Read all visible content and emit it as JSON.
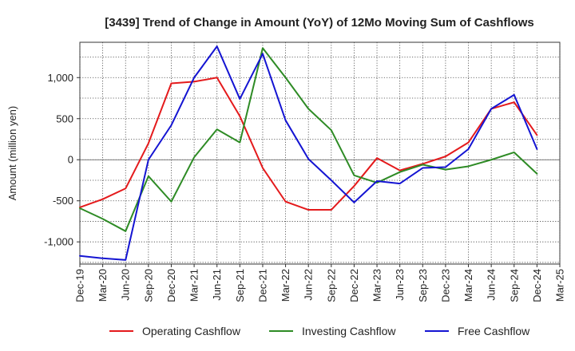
{
  "chart_data": {
    "type": "line",
    "title": "[3439]  Trend of Change in Amount (YoY) of 12Mo Moving Sum of Cashflows",
    "xlabel": "",
    "ylabel": "Amount (million yen)",
    "ylim": [
      -1270,
      1430
    ],
    "yticks": [
      -1000,
      -500,
      0,
      500,
      1000
    ],
    "ytick_labels": [
      "-1,000",
      "-500",
      "0",
      "500",
      "1,000"
    ],
    "categories": [
      "Dec-19",
      "Mar-20",
      "Jun-20",
      "Sep-20",
      "Dec-20",
      "Mar-21",
      "Jun-21",
      "Sep-21",
      "Dec-21",
      "Mar-22",
      "Jun-22",
      "Sep-22",
      "Dec-22",
      "Mar-23",
      "Jun-23",
      "Sep-23",
      "Dec-23",
      "Mar-24",
      "Jun-24",
      "Sep-24",
      "Dec-24",
      "Mar-25"
    ],
    "grid": true,
    "legend_position": "bottom",
    "series": [
      {
        "name": "Operating Cashflow",
        "color": "#e41a1c",
        "values": [
          -580,
          -480,
          -350,
          200,
          930,
          950,
          1000,
          530,
          -100,
          -510,
          -610,
          -610,
          -320,
          20,
          -130,
          -50,
          40,
          210,
          620,
          700,
          300,
          null
        ]
      },
      {
        "name": "Investing Cashflow",
        "color": "#2e8b25",
        "values": [
          -590,
          -720,
          -870,
          -200,
          -510,
          30,
          370,
          210,
          1360,
          1000,
          620,
          360,
          -190,
          -280,
          -150,
          -60,
          -120,
          -80,
          0,
          90,
          -170,
          null
        ]
      },
      {
        "name": "Free Cashflow",
        "color": "#1414d2",
        "values": [
          -1170,
          -1200,
          -1220,
          0,
          420,
          1000,
          1380,
          740,
          1290,
          480,
          10,
          -250,
          -520,
          -260,
          -290,
          -100,
          -90,
          130,
          620,
          790,
          130,
          null
        ]
      }
    ]
  }
}
